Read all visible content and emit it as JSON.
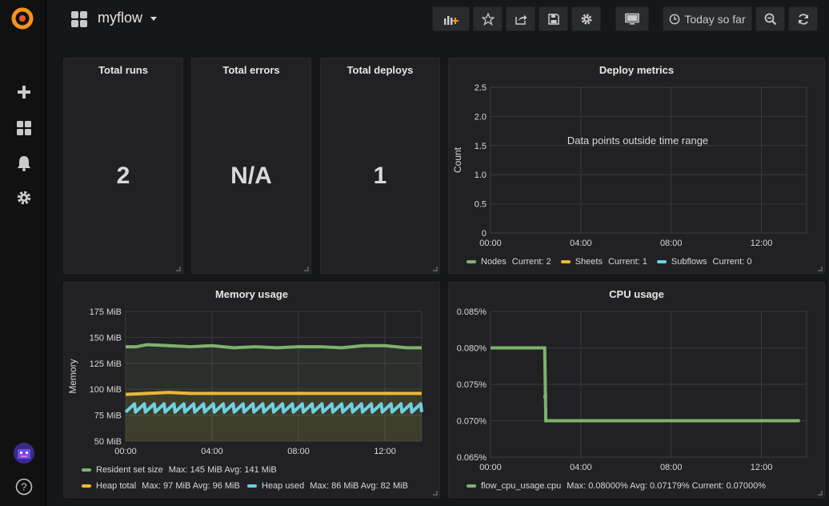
{
  "colors": {
    "accent": "#f7941d",
    "green": "#7eb26d",
    "yellow": "#eab839",
    "cyan": "#6ed0e0",
    "panel_bg": "#212124",
    "page_bg": "#161719"
  },
  "sidebar": {
    "logo_icon": "grafana-logo-icon",
    "items": [
      {
        "icon": "plus-icon"
      },
      {
        "icon": "dashboards-icon"
      },
      {
        "icon": "bell-icon"
      },
      {
        "icon": "gear-icon"
      }
    ],
    "bottom": [
      {
        "icon": "avatar"
      },
      {
        "icon": "help-icon",
        "label": "?"
      }
    ]
  },
  "navbar": {
    "title": "myflow",
    "time_picker_label": "Today so far",
    "buttons": [
      "add-panel",
      "star",
      "share",
      "save",
      "settings",
      "tv-mode",
      "time-picker",
      "zoom-out",
      "refresh"
    ]
  },
  "stats": [
    {
      "title": "Total runs",
      "value": "2"
    },
    {
      "title": "Total errors",
      "value": "N/A"
    },
    {
      "title": "Total deploys",
      "value": "1"
    }
  ],
  "deploy_panel": {
    "title": "Deploy metrics",
    "message": "Data points outside time range",
    "legend": [
      {
        "name": "Nodes",
        "stats": "Current: 2",
        "color": "#7eb26d"
      },
      {
        "name": "Sheets",
        "stats": "Current: 1",
        "color": "#eab839"
      },
      {
        "name": "Subflows",
        "stats": "Current: 0",
        "color": "#6ed0e0"
      }
    ]
  },
  "memory_panel": {
    "title": "Memory usage",
    "legend": [
      {
        "name": "Resident set size",
        "stats": "Max: 145 MiB  Avg: 141 MiB",
        "color": "#7eb26d"
      },
      {
        "name": "Heap total",
        "stats": "Max: 97 MiB  Avg: 96 MiB",
        "color": "#eab839"
      },
      {
        "name": "Heap used",
        "stats": "Max: 86 MiB  Avg: 82 MiB",
        "color": "#6ed0e0"
      }
    ]
  },
  "cpu_panel": {
    "title": "CPU usage",
    "legend": [
      {
        "name": "flow_cpu_usage.cpu",
        "stats": "Max: 0.08000%  Avg: 0.07179%  Current: 0.07000%",
        "color": "#7eb26d"
      }
    ]
  },
  "chart_data": [
    {
      "type": "line",
      "title": "Deploy metrics",
      "ylabel": "Count",
      "xlabel": "",
      "x_ticks": [
        "00:00",
        "04:00",
        "08:00",
        "12:00"
      ],
      "y_ticks": [
        "0",
        "0.5",
        "1.0",
        "1.5",
        "2.0",
        "2.5"
      ],
      "ylim": [
        0,
        2.5
      ],
      "xlim": [
        0,
        14
      ],
      "grid": true,
      "legend_position": "bottom",
      "series": [
        {
          "name": "Nodes",
          "values": []
        },
        {
          "name": "Sheets",
          "values": []
        },
        {
          "name": "Subflows",
          "values": []
        }
      ]
    },
    {
      "type": "line",
      "title": "Memory usage",
      "ylabel": "Memory",
      "xlabel": "",
      "x_ticks": [
        "00:00",
        "04:00",
        "08:00",
        "12:00"
      ],
      "y_ticks": [
        "50 MiB",
        "75 MiB",
        "100 MiB",
        "125 MiB",
        "150 MiB",
        "175 MiB"
      ],
      "ylim": [
        50,
        175
      ],
      "xlim": [
        0,
        13.7
      ],
      "grid": true,
      "legend_position": "bottom",
      "series": [
        {
          "name": "Resident set size",
          "x": [
            0,
            0.5,
            1,
            2,
            3,
            4,
            5,
            6,
            7,
            8,
            9,
            10,
            11,
            12,
            13,
            13.7
          ],
          "values": [
            141,
            141,
            143,
            142,
            141,
            142,
            140,
            141,
            140,
            141,
            141,
            140,
            142,
            142,
            140,
            140
          ]
        },
        {
          "name": "Heap total",
          "x": [
            0,
            1,
            2,
            3,
            4,
            5,
            6,
            7,
            8,
            9,
            10,
            11,
            12,
            13,
            13.7
          ],
          "values": [
            95,
            96,
            97,
            96,
            96,
            96,
            96,
            96,
            96,
            96,
            96,
            96,
            96,
            96,
            96
          ]
        },
        {
          "name": "Heap used",
          "x": [
            0,
            13.7
          ],
          "values": [
            82,
            82
          ],
          "oscillation": {
            "min": 78,
            "max": 86,
            "cycles": 30
          }
        }
      ]
    },
    {
      "type": "line",
      "title": "CPU usage",
      "ylabel": "",
      "xlabel": "",
      "x_ticks": [
        "00:00",
        "04:00",
        "08:00",
        "12:00"
      ],
      "y_ticks": [
        "0.065%",
        "0.070%",
        "0.075%",
        "0.080%",
        "0.085%"
      ],
      "ylim": [
        0.065,
        0.085
      ],
      "xlim": [
        0,
        14
      ],
      "grid": true,
      "legend_position": "bottom",
      "series": [
        {
          "name": "flow_cpu_usage.cpu",
          "x": [
            0,
            2.4,
            2.45,
            13.7
          ],
          "values": [
            0.08,
            0.08,
            0.07,
            0.07
          ]
        }
      ]
    }
  ]
}
